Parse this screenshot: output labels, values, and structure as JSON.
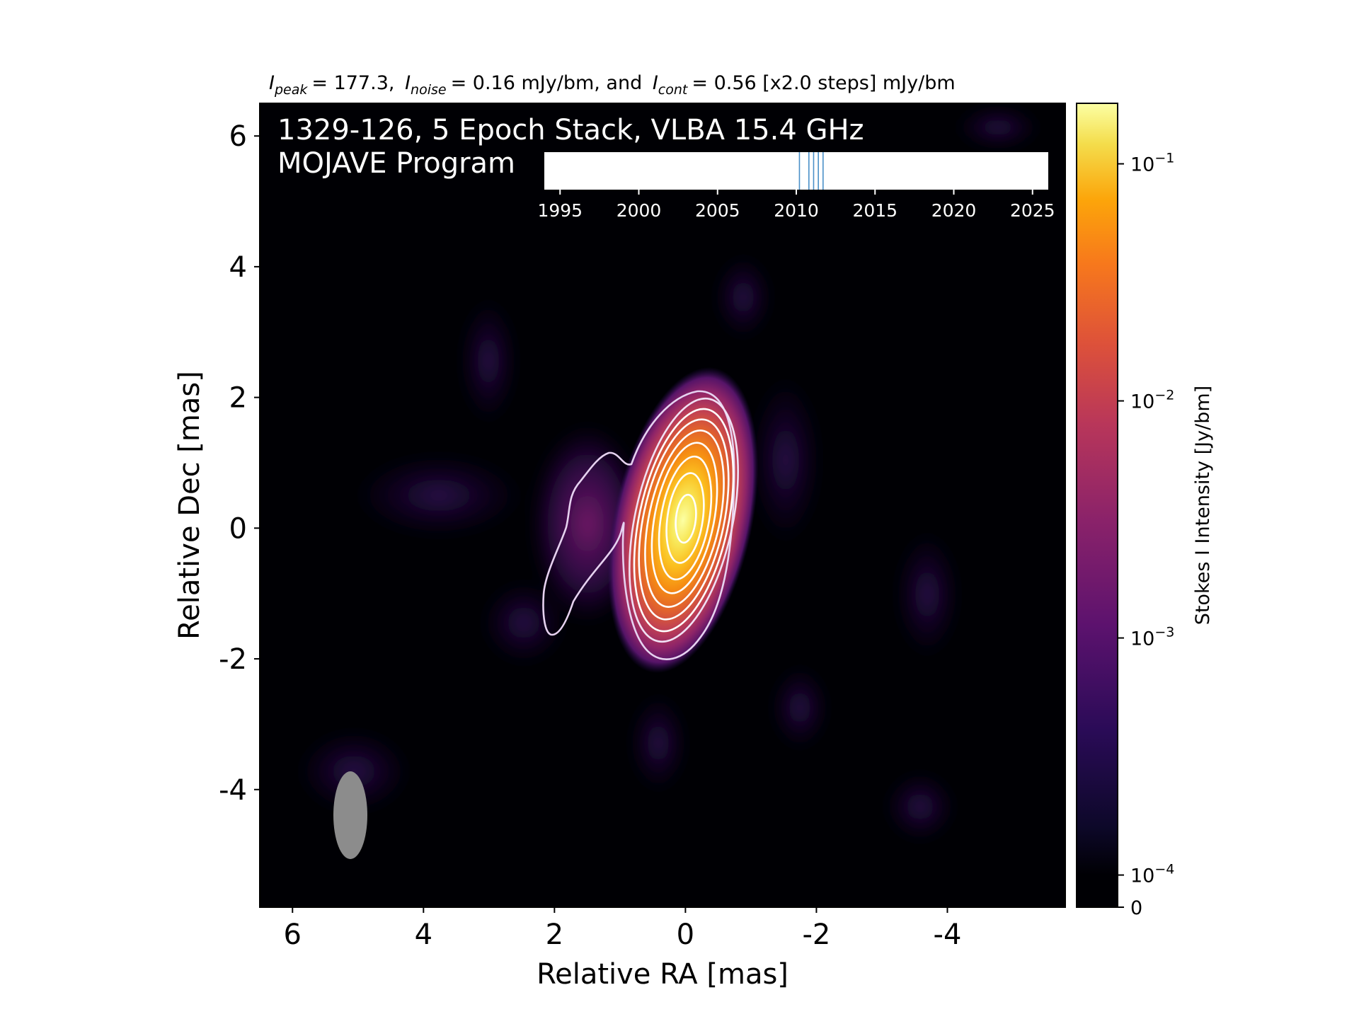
{
  "header": {
    "peak_sym": "I",
    "peak_sub": "peak",
    "peak_val": "= 177.3,",
    "noise_sym": "I",
    "noise_sub": "noise",
    "noise_val": "= 0.16 mJy/bm, and",
    "cont_sym": "I",
    "cont_sub": "cont",
    "cont_val": "= 0.56 [x2.0 steps] mJy/bm"
  },
  "panel": {
    "title_line1": "1329-126, 5 Epoch Stack, VLBA 15.4 GHz",
    "title_line2": "MOJAVE Program"
  },
  "colors": {
    "background": "#000004",
    "contour": "#ffffff",
    "outer_contour": "#e6d2f0",
    "beam": "#8c8c8c",
    "epoch_line": "#4a90c8"
  },
  "colormap": "inferno",
  "chart_data": [
    {
      "type": "heatmap",
      "title": "",
      "xlabel": "Relative RA [mas]",
      "ylabel": "Relative Dec [mas]",
      "xlim": [
        6.5,
        -5.8
      ],
      "ylim": [
        -5.8,
        6.5
      ],
      "x_ticks": [
        6,
        4,
        2,
        0,
        -2,
        -4
      ],
      "x_tick_labels": [
        "6",
        "4",
        "2",
        "0",
        "-2",
        "-4"
      ],
      "y_ticks": [
        6,
        4,
        2,
        0,
        -2,
        -4
      ],
      "y_tick_labels": [
        "6",
        "4",
        "2",
        "0",
        "-2",
        "-4"
      ],
      "peak_position": [
        0,
        0
      ],
      "contour_levels_count": 9,
      "beam": {
        "center": [
          5.15,
          -4.6
        ],
        "major_mas": 1.35,
        "minor_mas": 0.5
      },
      "colorbar": {
        "label": "Stokes I Intensity [Jy/bm]",
        "scale": "log",
        "range": [
          0,
          0.18
        ],
        "ticks": [
          0,
          0.0001,
          0.001,
          0.01,
          0.1
        ],
        "tick_labels": [
          {
            "base": "0",
            "exp": ""
          },
          {
            "base": "10",
            "exp": "−4"
          },
          {
            "base": "10",
            "exp": "−3"
          },
          {
            "base": "10",
            "exp": "−2"
          },
          {
            "base": "10",
            "exp": "−1"
          }
        ]
      }
    },
    {
      "type": "line",
      "title": "",
      "xlabel": "",
      "xlim": [
        1994,
        2026
      ],
      "x_ticks": [
        1995,
        2000,
        2005,
        2010,
        2015,
        2020,
        2025
      ],
      "x_tick_labels": [
        "1995",
        "2000",
        "2005",
        "2010",
        "2015",
        "2020",
        "2025"
      ],
      "epochs": [
        2010.2,
        2010.8,
        2011.1,
        2011.4,
        2011.7
      ]
    }
  ]
}
